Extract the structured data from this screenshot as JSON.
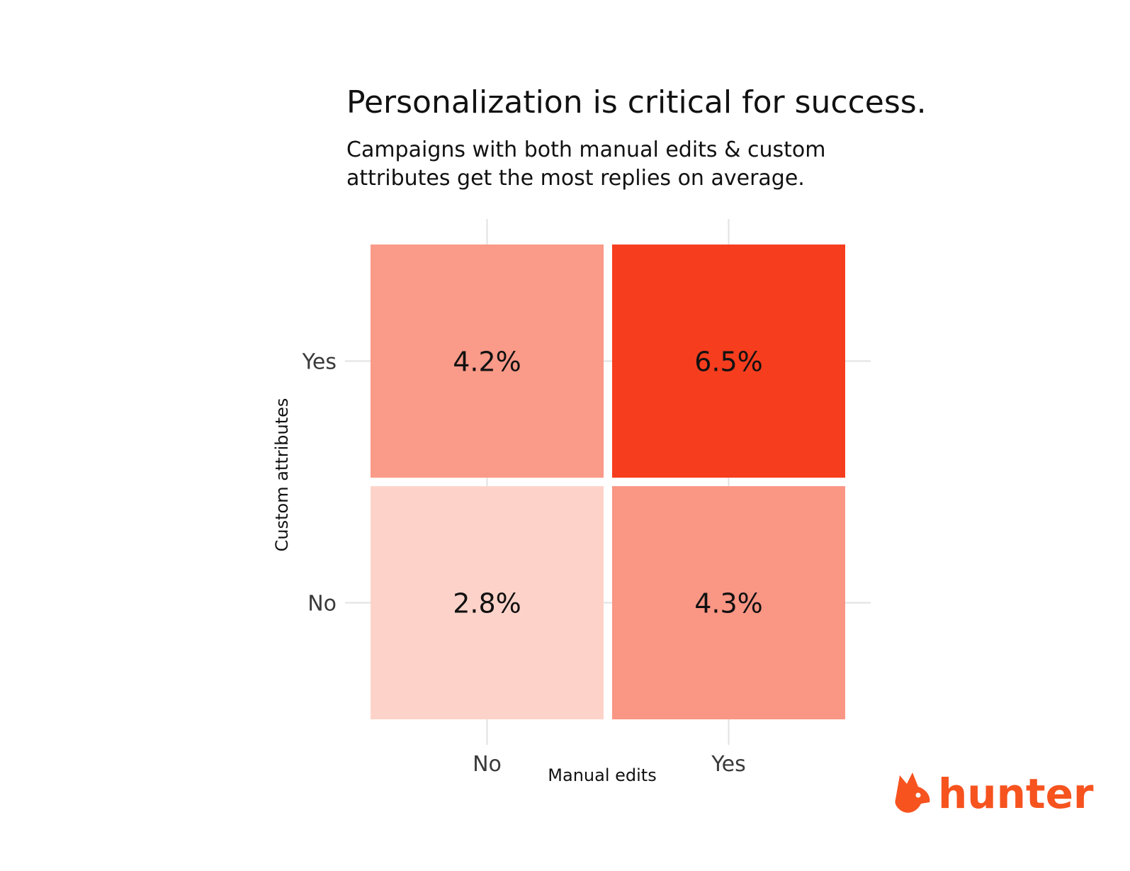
{
  "chart_data": {
    "type": "heatmap",
    "title": "Personalization is critical for success.",
    "subtitle_lines": [
      "Campaigns with both manual edits & custom",
      "attributes get the most replies on average."
    ],
    "xlabel": "Manual edits",
    "ylabel": "Custom attributes",
    "x_categories": [
      "No",
      "Yes"
    ],
    "y_categories": [
      "Yes",
      "No"
    ],
    "cells": [
      {
        "x": "No",
        "y": "Yes",
        "value": 4.2,
        "label": "4.2%"
      },
      {
        "x": "Yes",
        "y": "Yes",
        "value": 6.5,
        "label": "6.5%"
      },
      {
        "x": "No",
        "y": "No",
        "value": 2.8,
        "label": "2.8%"
      },
      {
        "x": "Yes",
        "y": "No",
        "value": 4.3,
        "label": "4.3%"
      }
    ],
    "color_low": "#fdd3c9",
    "color_high": "#f63d1e",
    "grid": true,
    "legend": "none"
  },
  "brand": {
    "name": "hunter",
    "icon": "fox-head-icon",
    "color": "#f6531f"
  }
}
